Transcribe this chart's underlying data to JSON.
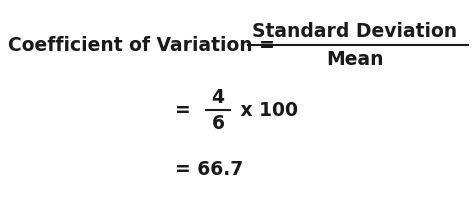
{
  "bg_color": "#ffffff",
  "text_color": "#1a1a1a",
  "line1_left": "Coefficient of Variation = ",
  "line1_numerator": "Standard Deviation",
  "line1_denominator": "Mean",
  "line2_eq": "= ",
  "line2_numerator": "4",
  "line2_denominator": "6",
  "line2_right": " x 100",
  "line3": "= 66.7",
  "fontsize_main": 13.5,
  "fig_width": 4.74,
  "fig_height": 1.97,
  "dpi": 100
}
